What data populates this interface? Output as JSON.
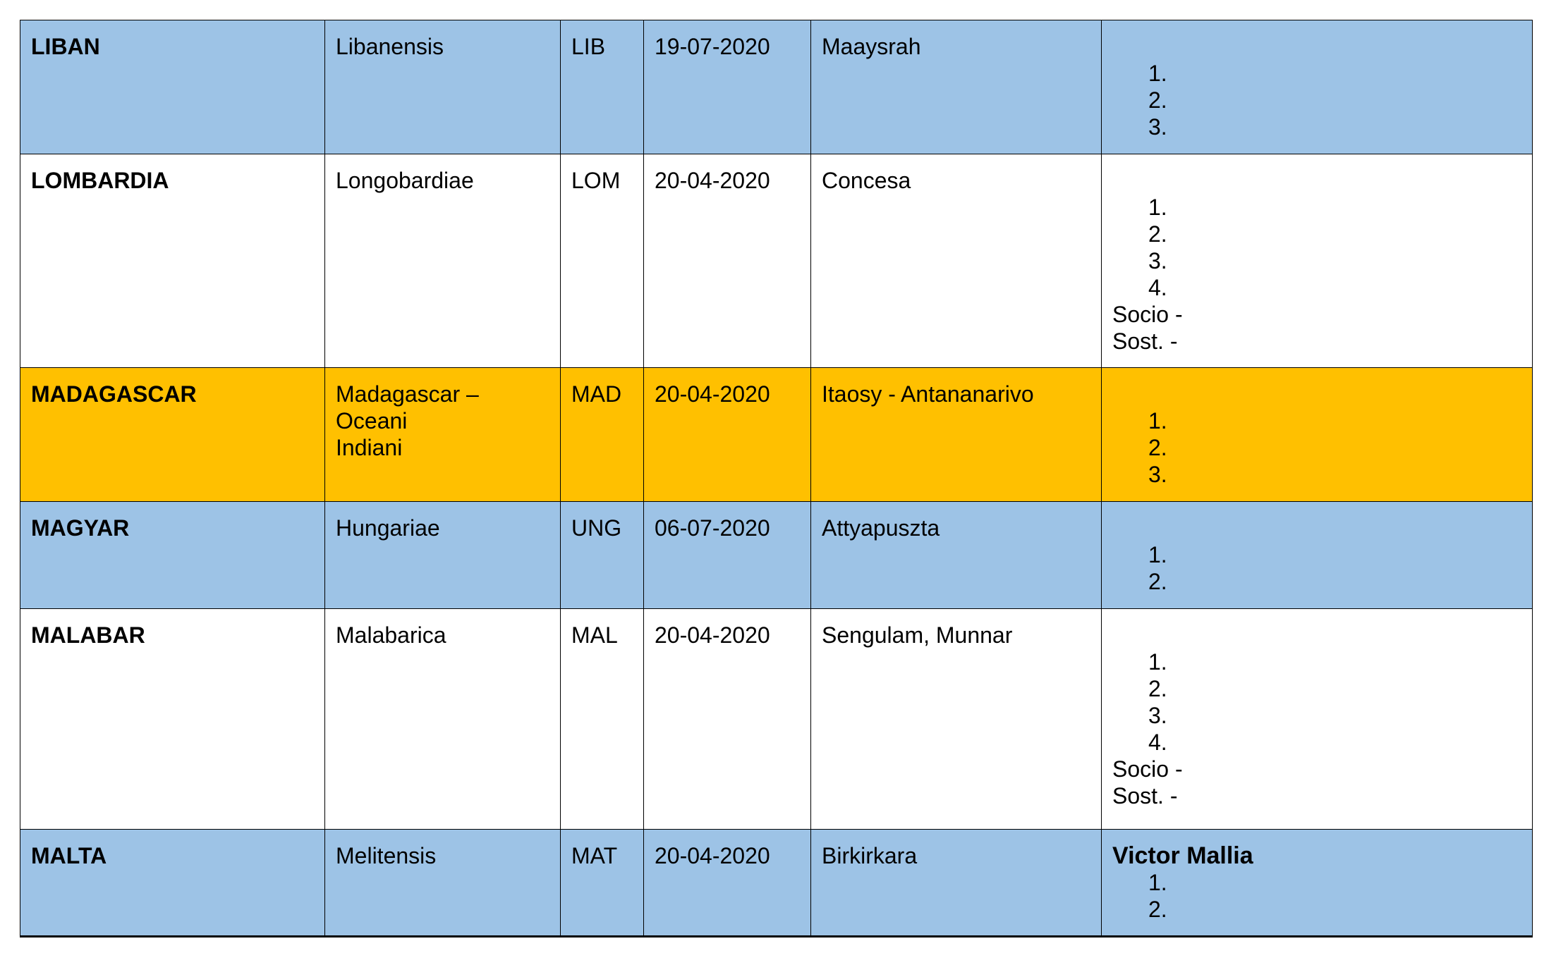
{
  "rows": [
    {
      "style": "blue",
      "name": "LIBAN",
      "latin": [
        "Libanensis"
      ],
      "code": "LIB",
      "date": "19-07-2020",
      "place": "Maaysrah",
      "lead": "",
      "items": [
        "1.",
        "2.",
        "3."
      ]
    },
    {
      "style": "white",
      "name": "LOMBARDIA",
      "latin": [
        "Longobardiae"
      ],
      "code": "LOM",
      "date": "20-04-2020",
      "place": "Concesa",
      "lead": "",
      "items": [
        "1.",
        "2.",
        "3.",
        "4.",
        "Socio -",
        "Sost. -"
      ]
    },
    {
      "style": "orange",
      "name": "MADAGASCAR",
      "latin": [
        "Madagascar –",
        "Oceani",
        "Indiani"
      ],
      "code": "MAD",
      "date": "20-04-2020",
      "place": "Itaosy - Antananarivo",
      "lead": "",
      "items": [
        "1.",
        "2.",
        "3."
      ]
    },
    {
      "style": "blue",
      "name": "MAGYAR",
      "latin": [
        "Hungariae"
      ],
      "code": "UNG",
      "date": "06-07-2020",
      "place": "Attyapuszta",
      "lead": "",
      "items": [
        "1.",
        "2."
      ]
    },
    {
      "style": "white",
      "name": "MALABAR",
      "latin": [
        "Malabarica"
      ],
      "code": "MAL",
      "date": "20-04-2020",
      "place": "Sengulam, Munnar",
      "lead": "",
      "items": [
        "1.",
        "2.",
        "3.",
        "4.",
        "Socio -",
        "Sost. -"
      ]
    },
    {
      "style": "blue",
      "name": "MALTA",
      "latin": [
        "Melitensis"
      ],
      "code": "MAT",
      "date": "20-04-2020",
      "place": "Birkirkara",
      "lead": "Victor Mallia",
      "items": [
        "1.",
        "2."
      ]
    }
  ],
  "colors": {
    "blue": "#9dc3e6",
    "white": "#ffffff",
    "orange": "#ffc000"
  }
}
